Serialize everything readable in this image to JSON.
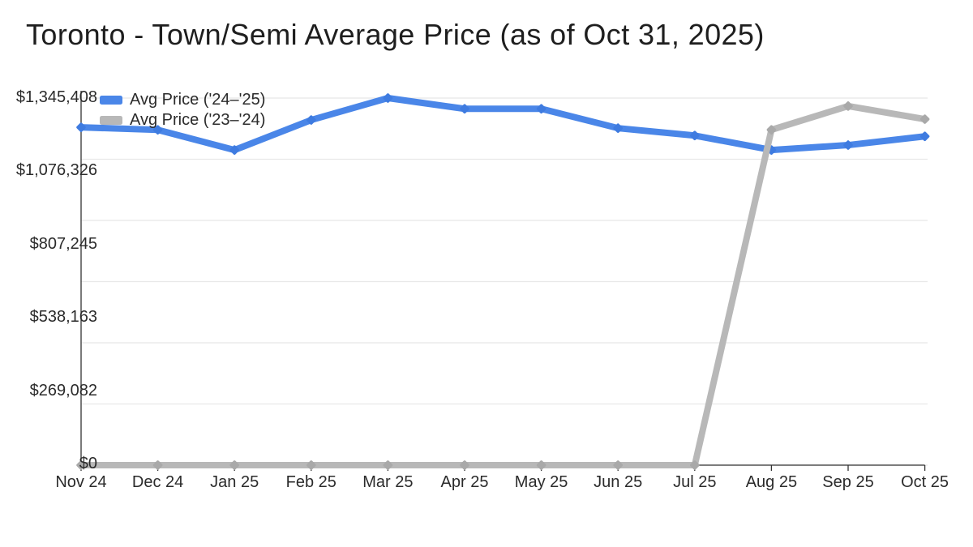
{
  "chart_data": {
    "type": "line",
    "title": "Toronto - Town/Semi Average Price (as of Oct 31, 2025)",
    "categories": [
      "Nov 24",
      "Dec 24",
      "Jan 25",
      "Feb 25",
      "Mar 25",
      "Apr 25",
      "May 25",
      "Jun 25",
      "Jul 25",
      "Aug 25",
      "Sep 25",
      "Oct 25"
    ],
    "series": [
      {
        "name": "Avg Price ('24–'25)",
        "color": "#4a86e8",
        "marker_color": "#3e7be0",
        "values": [
          1238000,
          1229000,
          1155000,
          1265000,
          1345408,
          1306000,
          1306000,
          1235000,
          1208000,
          1155000,
          1173000,
          1205000
        ]
      },
      {
        "name": "Avg Price ('23–'24)",
        "color": "#b8b8b8",
        "marker_color": "#a9a9a9",
        "values": [
          0,
          0,
          0,
          0,
          0,
          0,
          0,
          0,
          0,
          1229000,
          1316000,
          1268000
        ]
      }
    ],
    "xlabel": "",
    "ylabel": "",
    "ylim": [
      0,
      1345408
    ],
    "y_tick_labels": [
      "$1,345,408",
      "$1,076,326",
      "$807,245",
      "$538,163",
      "$269,082",
      "$0"
    ],
    "grid": "horizontal",
    "legend_position": "top-left"
  },
  "colors": {
    "grid": "#e8e8e8",
    "axis": "#333333",
    "text": "#2b2b2b",
    "title": "#1e1e1e",
    "background": "#ffffff"
  }
}
